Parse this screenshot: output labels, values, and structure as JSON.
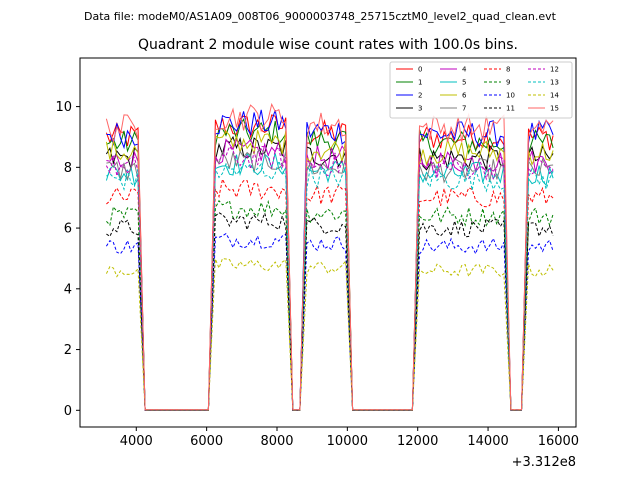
{
  "chart_data": {
    "type": "line",
    "suptitle": "Data file: modeM0/AS1A09_008T06_9000003748_25715cztM0_level2_quad_clean.evt",
    "title": "Quadrant 2 module wise count rates with 100.0s bins.",
    "xlabel": "",
    "ylabel": "",
    "x_offset_label": "+3.312e8",
    "xlim": [
      2400,
      16500
    ],
    "ylim": [
      -0.55,
      11.6
    ],
    "x_ticks": [
      4000,
      6000,
      8000,
      10000,
      12000,
      14000,
      16000
    ],
    "y_ticks": [
      0,
      2,
      4,
      6,
      8,
      10
    ],
    "legend_position": "upper right",
    "legend_columns": 4,
    "segments": [
      [
        3150,
        4050
      ],
      [
        6250,
        8250
      ],
      [
        8850,
        9950
      ],
      [
        12050,
        14450
      ],
      [
        15150,
        15850
      ]
    ],
    "gap_bridges": [
      [
        4050,
        4250,
        6050,
        6250
      ],
      [
        8250,
        8450,
        8650,
        8850
      ],
      [
        9950,
        10150,
        11850,
        12050
      ],
      [
        14450,
        14650,
        14950,
        15150
      ]
    ],
    "series": [
      {
        "name": "0",
        "color": "#ff0000",
        "dash": "solid",
        "level": 9.0
      },
      {
        "name": "1",
        "color": "#008000",
        "dash": "solid",
        "level": 8.8
      },
      {
        "name": "2",
        "color": "#0000ff",
        "dash": "solid",
        "level": 9.1
      },
      {
        "name": "3",
        "color": "#000000",
        "dash": "solid",
        "level": 8.3
      },
      {
        "name": "4",
        "color": "#bf00bf",
        "dash": "solid",
        "level": 8.2
      },
      {
        "name": "5",
        "color": "#00bfbf",
        "dash": "solid",
        "level": 7.8
      },
      {
        "name": "6",
        "color": "#bfbf00",
        "dash": "solid",
        "level": 8.5
      },
      {
        "name": "7",
        "color": "#808080",
        "dash": "solid",
        "level": 7.9
      },
      {
        "name": "8",
        "color": "#ff0000",
        "dash": "dashed",
        "level": 7.0
      },
      {
        "name": "9",
        "color": "#008000",
        "dash": "dashed",
        "level": 6.4
      },
      {
        "name": "10",
        "color": "#0000ff",
        "dash": "dashed",
        "level": 5.4
      },
      {
        "name": "11",
        "color": "#000000",
        "dash": "dashed",
        "level": 6.0
      },
      {
        "name": "12",
        "color": "#bf00bf",
        "dash": "dashed",
        "level": 8.0
      },
      {
        "name": "13",
        "color": "#00bfbf",
        "dash": "dashed",
        "level": 7.6
      },
      {
        "name": "14",
        "color": "#bfbf00",
        "dash": "dashed",
        "level": 4.6
      },
      {
        "name": "15",
        "color": "#ff6666",
        "dash": "solid",
        "level": 9.3
      }
    ]
  }
}
